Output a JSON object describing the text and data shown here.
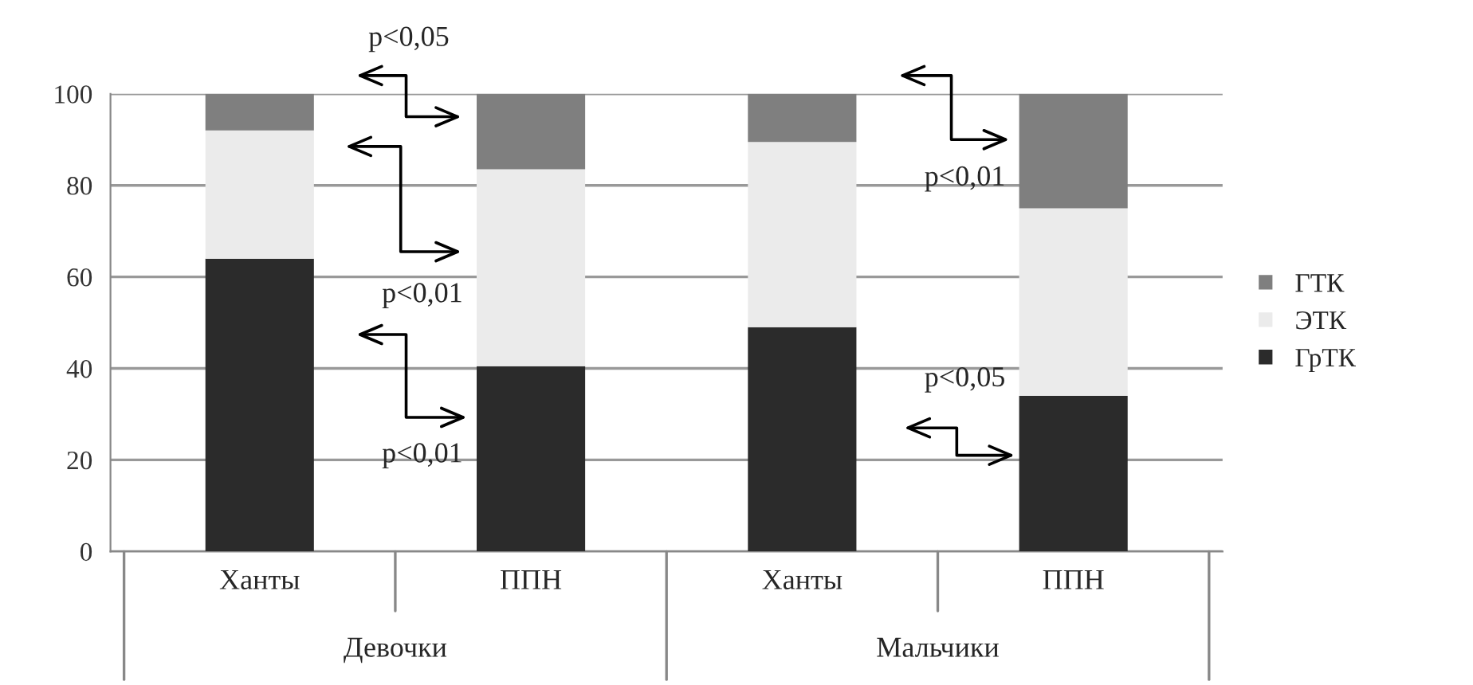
{
  "chart_data": {
    "type": "bar",
    "stacked": true,
    "categories": [
      "Ханты",
      "ППН",
      "Ханты",
      "ППН"
    ],
    "series": [
      {
        "name": "ГрТК",
        "color": "#2b2b2b",
        "values": [
          64,
          40.5,
          49,
          34
        ]
      },
      {
        "name": "ЭТК",
        "color": "#ebebeb",
        "values": [
          28,
          43,
          40.5,
          41
        ]
      },
      {
        "name": "ГТК",
        "color": "#7f7f7f",
        "values": [
          8,
          16.5,
          10.5,
          25
        ]
      }
    ],
    "ylim": [
      0,
      100
    ],
    "yticks": [
      0,
      20,
      40,
      60,
      80,
      100
    ],
    "grid": "y",
    "legend": "right",
    "annotations": [
      "p<0,05",
      "p<0,01",
      "p<0,01",
      "p<0,01",
      "p<0,05",
      "Девочки",
      "Мальчики"
    ]
  }
}
